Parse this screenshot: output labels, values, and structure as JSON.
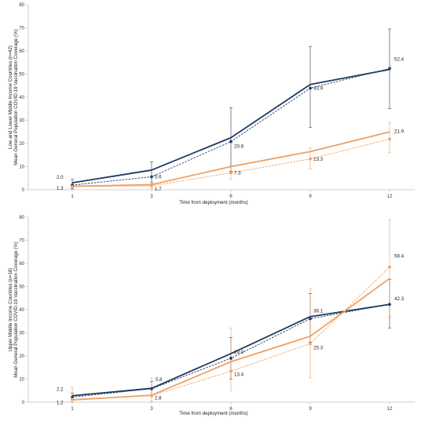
{
  "chart_data": [
    {
      "type": "line",
      "xlabel": "Time from deployment (months)",
      "ylabel_lines": [
        "Low and Lower Middle Income Countries (n=42)",
        "Mean General Population COVID-19 Vaccination Coverage (%)"
      ],
      "x": [
        1,
        3,
        6,
        9,
        12
      ],
      "ylim": [
        0,
        80
      ],
      "yticks": [
        0,
        10,
        20,
        30,
        40,
        50,
        60,
        70,
        80
      ],
      "series": [
        {
          "style": "solid",
          "color": "#1f3b60",
          "values": [
            3.0,
            8.5,
            22.5,
            45.5,
            52.0
          ]
        },
        {
          "style": "dashed",
          "color": "#1f3b60",
          "marker": true,
          "values": [
            2.0,
            5.6,
            20.8,
            43.9,
            52.4
          ],
          "error_low": [
            0.5,
            3.0,
            8.0,
            27.0,
            35.0
          ],
          "error_high": [
            4.5,
            12.0,
            35.5,
            62.0,
            69.5
          ],
          "labels": [
            "2.0",
            "5.6",
            "20.8",
            "43.9",
            "52.4"
          ]
        },
        {
          "style": "solid",
          "color": "#f0a060",
          "values": [
            1.5,
            2.2,
            10.0,
            16.5,
            25.0
          ]
        },
        {
          "style": "dashed",
          "color": "#f0a060",
          "marker": true,
          "values": [
            1.3,
            1.7,
            7.3,
            13.3,
            21.9
          ],
          "error_low": [
            0.3,
            0.5,
            4.5,
            9.0,
            16.0
          ],
          "error_high": [
            2.5,
            3.5,
            10.5,
            18.0,
            29.0
          ],
          "labels": [
            "1.3",
            "1.7",
            "7.3",
            "13.3",
            "21.9"
          ]
        }
      ]
    },
    {
      "type": "line",
      "xlabel": "Time from deployment (months)",
      "ylabel_lines": [
        "Upper Middle Income Countries (n=18)",
        "Mean General Population COVID-19 Vaccination Coverage (%)"
      ],
      "x": [
        1,
        3,
        6,
        9,
        12
      ],
      "ylim": [
        0,
        80
      ],
      "yticks": [
        0,
        10,
        20,
        30,
        40,
        50,
        60,
        70,
        80
      ],
      "series": [
        {
          "style": "solid",
          "color": "#1f3b60",
          "values": [
            2.8,
            6.0,
            21.0,
            37.0,
            42.3
          ]
        },
        {
          "style": "dashed",
          "color": "#1f3b60",
          "marker": true,
          "values": [
            2.2,
            5.8,
            19.0,
            36.1,
            42.3
          ],
          "error_low": [
            1.0,
            3.0,
            10.0,
            26.0,
            32.0
          ],
          "error_high": [
            4.0,
            9.0,
            28.0,
            47.0,
            53.0
          ],
          "labels": [
            "2.2",
            "5.8",
            "19.0",
            "36.1",
            "42.3"
          ]
        },
        {
          "style": "solid",
          "color": "#f0a060",
          "values": [
            1.0,
            3.0,
            17.5,
            28.5,
            53.5
          ]
        },
        {
          "style": "dashed",
          "color": "#f0a060",
          "marker": true,
          "values": [
            1.2,
            2.8,
            13.4,
            25.3,
            58.4
          ],
          "error_low": [
            0.2,
            0.5,
            5.0,
            10.5,
            37.0
          ],
          "error_high": [
            6.5,
            10.5,
            32.0,
            49.0,
            79.0
          ],
          "labels": [
            "1.2",
            "2.8",
            "13.4",
            "25.3",
            "58.4"
          ]
        }
      ]
    }
  ]
}
